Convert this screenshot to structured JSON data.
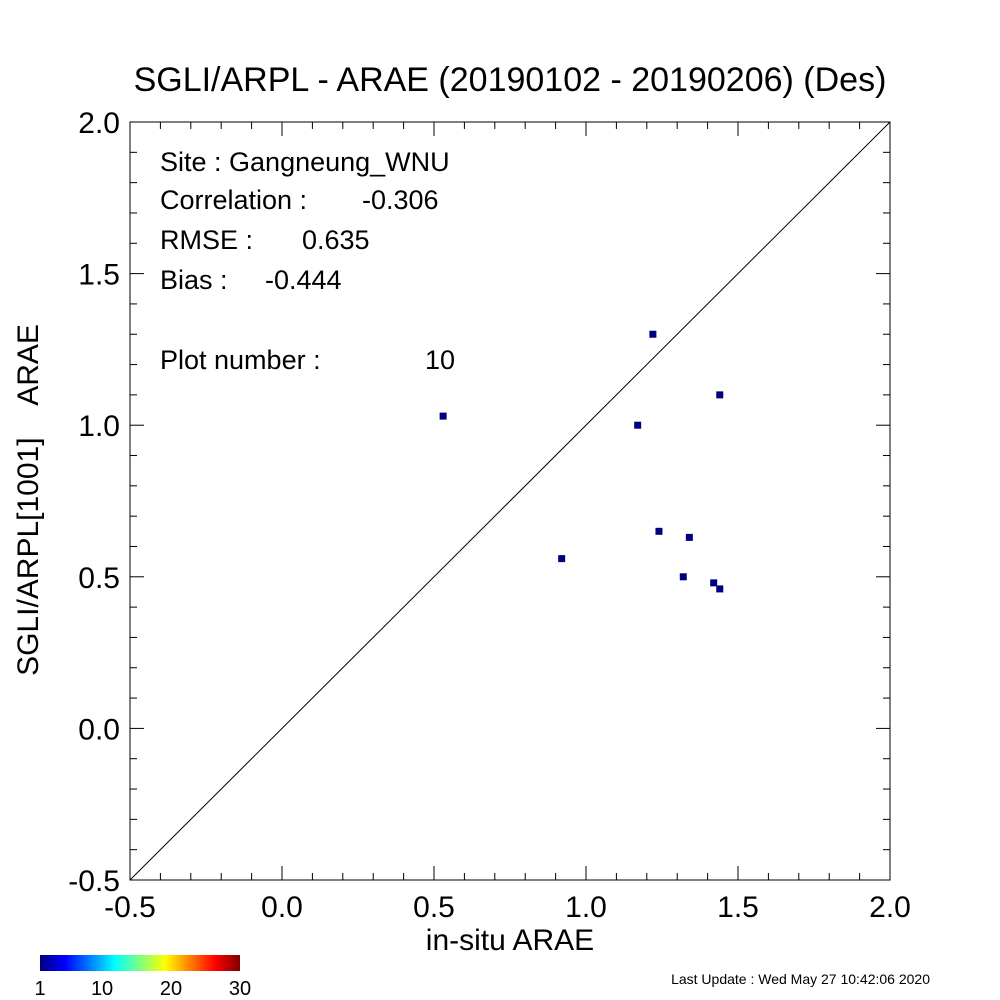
{
  "title": "SGLI/ARPL - ARAE (20190102 - 20190206) (Des)",
  "annotations": {
    "site": "Site : Gangneung_WNU",
    "correlation_label": "Correlation :",
    "correlation_value": "-0.306",
    "rmse_label": "RMSE :",
    "rmse_value": "0.635",
    "bias_label": "Bias :",
    "bias_value": "-0.444",
    "plot_number_label": "Plot number :",
    "plot_number_value": "10"
  },
  "colorbar": {
    "tick_labels": [
      "1",
      "10",
      "20",
      "30"
    ],
    "range": [
      1,
      30
    ],
    "colors": [
      "#00007f",
      "#0000ff",
      "#007fff",
      "#00ffff",
      "#7fff7f",
      "#ffff00",
      "#ff7f00",
      "#ff0000",
      "#7f0000"
    ]
  },
  "footer": "Last Update : Wed May 27 10:42:06 2020",
  "chart_data": {
    "type": "scatter",
    "title": "SGLI/ARPL - ARAE (20190102 - 20190206) (Des)",
    "xlabel": "in-situ ARAE",
    "ylabel": "SGLI/ARPL[1001]    ARAE",
    "xlim": [
      -0.5,
      2.0
    ],
    "ylim": [
      -0.5,
      2.0
    ],
    "xticks": [
      "-0.5",
      "0.0",
      "0.5",
      "1.0",
      "1.5",
      "2.0"
    ],
    "yticks": [
      "-0.5",
      "0.0",
      "0.5",
      "1.0",
      "1.5",
      "2.0"
    ],
    "one_to_one_line": true,
    "grid": false,
    "point_color": "#00007f",
    "points": [
      {
        "x": 0.53,
        "y": 1.03
      },
      {
        "x": 0.92,
        "y": 0.56
      },
      {
        "x": 1.17,
        "y": 1.0
      },
      {
        "x": 1.22,
        "y": 1.3
      },
      {
        "x": 1.24,
        "y": 0.65
      },
      {
        "x": 1.32,
        "y": 0.5
      },
      {
        "x": 1.34,
        "y": 0.63
      },
      {
        "x": 1.42,
        "y": 0.48
      },
      {
        "x": 1.44,
        "y": 1.1
      },
      {
        "x": 1.44,
        "y": 0.46
      }
    ]
  }
}
